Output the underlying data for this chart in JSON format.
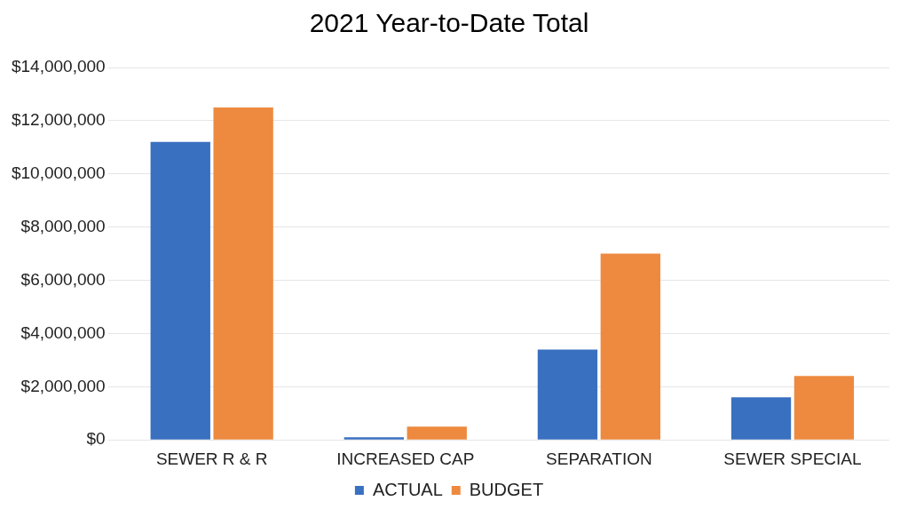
{
  "chart_data": {
    "type": "bar",
    "title": "2021 Year-to-Date Total",
    "categories": [
      "SEWER R & R",
      "INCREASED CAP",
      "SEPARATION",
      "SEWER SPECIAL"
    ],
    "series": [
      {
        "name": "ACTUAL",
        "color": "#3a70c0",
        "values": [
          11200000,
          100000,
          3400000,
          1600000
        ]
      },
      {
        "name": "BUDGET",
        "color": "#ed8a3f",
        "values": [
          12500000,
          500000,
          7000000,
          2400000
        ]
      }
    ],
    "ylim": [
      0,
      14000000
    ],
    "yticks": [
      {
        "value": 0,
        "label": "$0"
      },
      {
        "value": 2000000,
        "label": "$2,000,000"
      },
      {
        "value": 4000000,
        "label": "$4,000,000"
      },
      {
        "value": 6000000,
        "label": "$6,000,000"
      },
      {
        "value": 8000000,
        "label": "$8,000,000"
      },
      {
        "value": 10000000,
        "label": "$10,000,000"
      },
      {
        "value": 12000000,
        "label": "$12,000,000"
      },
      {
        "value": 14000000,
        "label": "$14,000,000"
      }
    ],
    "grid": "y",
    "legend": "bottom"
  }
}
